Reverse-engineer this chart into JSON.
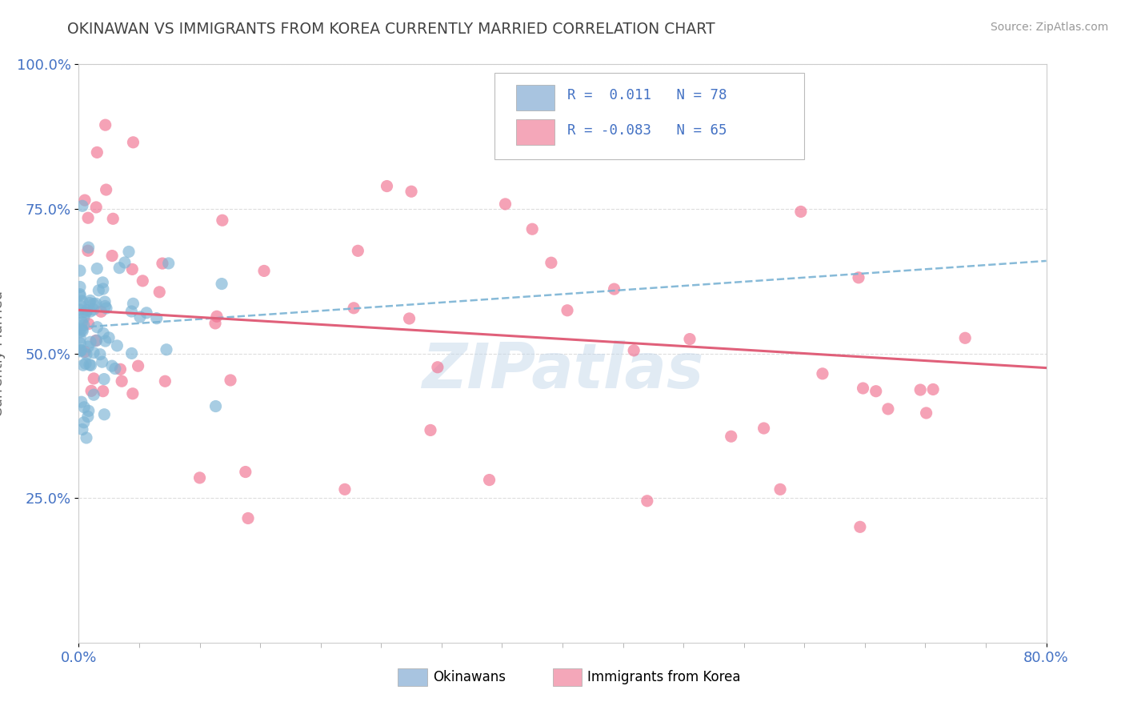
{
  "title": "OKINAWAN VS IMMIGRANTS FROM KOREA CURRENTLY MARRIED CORRELATION CHART",
  "source": "Source: ZipAtlas.com",
  "ylabel": "Currently Married",
  "xlim": [
    0.0,
    0.8
  ],
  "ylim": [
    0.0,
    1.0
  ],
  "watermark_text": "ZIPatlas",
  "okinawan_color": "#a8c4e0",
  "korea_color": "#f4a7b9",
  "okinawan_scatter_color": "#7ab3d4",
  "korea_scatter_color": "#f07090",
  "trend_blue": "#7ab3d4",
  "trend_pink": "#e0607a",
  "background": "#ffffff",
  "title_color": "#444444",
  "axis_label_color": "#666666",
  "tick_color": "#4472c4",
  "grid_color": "#dddddd",
  "blue_trend_start_y": 0.545,
  "blue_trend_end_y": 0.66,
  "pink_trend_start_y": 0.575,
  "pink_trend_end_y": 0.475
}
